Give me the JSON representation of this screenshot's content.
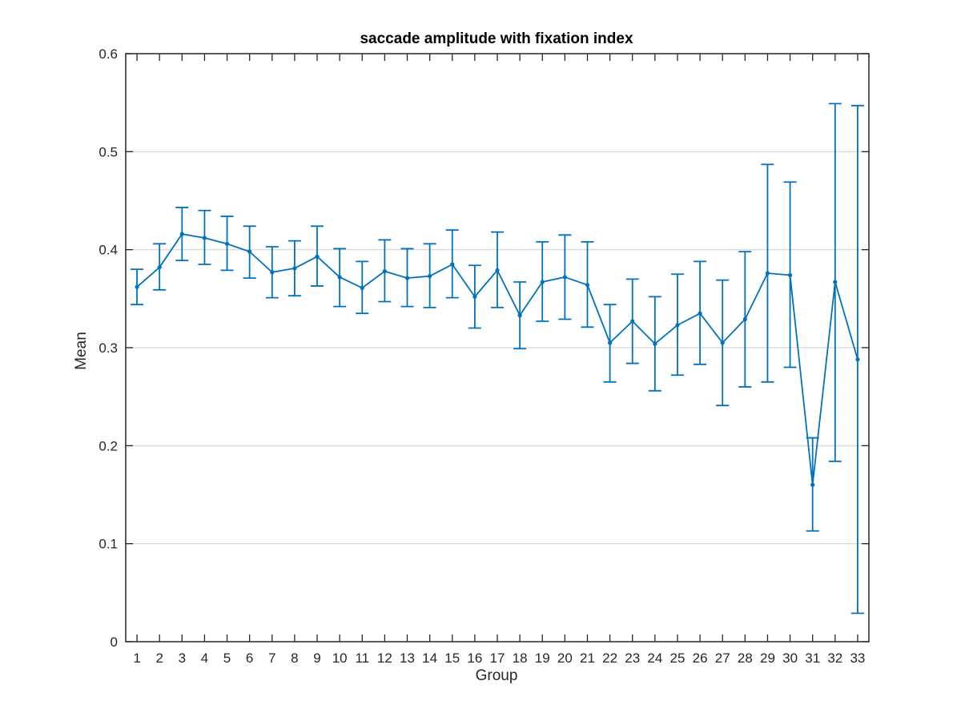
{
  "chart_data": {
    "type": "line",
    "title": "saccade amplitude with fixation index",
    "xlabel": "Group",
    "ylabel": "Mean",
    "xlim": [
      0.5,
      33.5
    ],
    "ylim": [
      0,
      0.6
    ],
    "yticks": [
      0,
      0.1,
      0.2,
      0.3,
      0.4,
      0.5,
      0.6
    ],
    "ytick_labels": [
      "0",
      "0.1",
      "0.2",
      "0.3",
      "0.4",
      "0.5",
      "0.6"
    ],
    "xticks": [
      1,
      2,
      3,
      4,
      5,
      6,
      7,
      8,
      9,
      10,
      11,
      12,
      13,
      14,
      15,
      16,
      17,
      18,
      19,
      20,
      21,
      22,
      23,
      24,
      25,
      26,
      27,
      28,
      29,
      30,
      31,
      32,
      33
    ],
    "xtick_labels": [
      "1",
      "2",
      "3",
      "4",
      "5",
      "6",
      "7",
      "8",
      "9",
      "10",
      "11",
      "12",
      "13",
      "14",
      "15",
      "16",
      "17",
      "18",
      "19",
      "20",
      "21",
      "22",
      "23",
      "24",
      "25",
      "26",
      "27",
      "28",
      "29",
      "30",
      "31",
      "32",
      "33"
    ],
    "grid": "horizontal",
    "error_bars": true,
    "series": [
      {
        "color": "#0072bd",
        "x": [
          1,
          2,
          3,
          4,
          5,
          6,
          7,
          8,
          9,
          10,
          11,
          12,
          13,
          14,
          15,
          16,
          17,
          18,
          19,
          20,
          21,
          22,
          23,
          24,
          25,
          26,
          27,
          28,
          29,
          30,
          31,
          32,
          33
        ],
        "y": [
          0.362,
          0.382,
          0.416,
          0.412,
          0.406,
          0.398,
          0.377,
          0.381,
          0.393,
          0.372,
          0.361,
          0.378,
          0.371,
          0.373,
          0.385,
          0.352,
          0.379,
          0.333,
          0.367,
          0.372,
          0.364,
          0.305,
          0.327,
          0.304,
          0.323,
          0.335,
          0.305,
          0.329,
          0.376,
          0.374,
          0.16,
          0.367,
          0.288
        ],
        "lower": [
          0.344,
          0.359,
          0.389,
          0.385,
          0.379,
          0.371,
          0.351,
          0.353,
          0.363,
          0.342,
          0.335,
          0.347,
          0.342,
          0.341,
          0.351,
          0.32,
          0.341,
          0.299,
          0.327,
          0.329,
          0.321,
          0.265,
          0.284,
          0.256,
          0.272,
          0.283,
          0.241,
          0.26,
          0.265,
          0.28,
          0.113,
          0.184,
          0.029
        ],
        "upper": [
          0.38,
          0.406,
          0.443,
          0.44,
          0.434,
          0.424,
          0.403,
          0.409,
          0.424,
          0.401,
          0.388,
          0.41,
          0.401,
          0.406,
          0.42,
          0.384,
          0.418,
          0.367,
          0.408,
          0.415,
          0.408,
          0.344,
          0.37,
          0.352,
          0.375,
          0.388,
          0.369,
          0.398,
          0.487,
          0.469,
          0.208,
          0.549,
          0.547
        ]
      }
    ]
  }
}
